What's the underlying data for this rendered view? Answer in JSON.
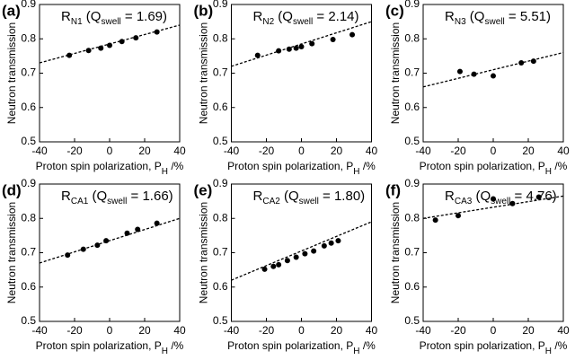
{
  "chart_data": [
    {
      "type": "scatter",
      "panel": "(a)",
      "title": [
        "R",
        "N1",
        " (Q",
        "swell",
        " = 1.69)"
      ],
      "xlabel": [
        "Proton spin polarization, P",
        "H",
        " /%"
      ],
      "ylabel": "Neutron transmission",
      "x": [
        -23,
        -12,
        -5,
        0,
        7,
        15,
        27
      ],
      "values": [
        0.752,
        0.766,
        0.773,
        0.781,
        0.792,
        0.803,
        0.82
      ],
      "fit": {
        "x": [
          -40,
          40
        ],
        "values": [
          0.73,
          0.84
        ]
      },
      "color": "#000000",
      "xlim": [
        -40,
        40
      ],
      "xticks": [
        -40,
        -20,
        0,
        20,
        40
      ],
      "ylim": [
        0.5,
        0.9
      ],
      "yticks": [
        0.5,
        0.6,
        0.7,
        0.8,
        0.9
      ]
    },
    {
      "type": "scatter",
      "panel": "(b)",
      "title": [
        "R",
        "N2",
        " (Q",
        "swell",
        " = 2.14)"
      ],
      "xlabel": [
        "Proton spin polarization, P",
        "H",
        " /%"
      ],
      "ylabel": "Neutron transmission",
      "x": [
        -25,
        -13,
        -7,
        -3,
        0,
        6,
        18,
        29
      ],
      "values": [
        0.752,
        0.765,
        0.77,
        0.773,
        0.777,
        0.786,
        0.798,
        0.812
      ],
      "fit": {
        "x": [
          -40,
          40
        ],
        "values": [
          0.72,
          0.85
        ]
      },
      "color": "#000000",
      "xlim": [
        -40,
        40
      ],
      "xticks": [
        -40,
        -20,
        0,
        20,
        40
      ],
      "ylim": [
        0.5,
        0.9
      ],
      "yticks": [
        0.5,
        0.6,
        0.7,
        0.8,
        0.9
      ]
    },
    {
      "type": "scatter",
      "panel": "(c)",
      "title": [
        "R",
        "N3",
        " (Q",
        "swell",
        " = 5.51)"
      ],
      "xlabel": [
        "Proton spin polarization, P",
        "H",
        " /%"
      ],
      "ylabel": "Neutron transmission",
      "x": [
        -19,
        -11,
        0,
        16,
        23
      ],
      "values": [
        0.705,
        0.697,
        0.692,
        0.73,
        0.735
      ],
      "fit": {
        "x": [
          -40,
          40
        ],
        "values": [
          0.66,
          0.76
        ]
      },
      "color": "#000000",
      "xlim": [
        -40,
        40
      ],
      "xticks": [
        -40,
        -20,
        0,
        20,
        40
      ],
      "ylim": [
        0.5,
        0.9
      ],
      "yticks": [
        0.5,
        0.6,
        0.7,
        0.8,
        0.9
      ]
    },
    {
      "type": "scatter",
      "panel": "(d)",
      "title": [
        "R",
        "CA1",
        " (Q",
        "swell",
        " = 1.66)"
      ],
      "xlabel": [
        "Proton spin polarization, P",
        "H",
        " /%"
      ],
      "ylabel": "Neutron transmission",
      "x": [
        -24,
        -15,
        -7,
        -2,
        10,
        16,
        27
      ],
      "values": [
        0.693,
        0.71,
        0.722,
        0.735,
        0.757,
        0.768,
        0.786
      ],
      "fit": {
        "x": [
          -40,
          40
        ],
        "values": [
          0.67,
          0.8
        ]
      },
      "color": "#000000",
      "xlim": [
        -40,
        40
      ],
      "xticks": [
        -40,
        -20,
        0,
        20,
        40
      ],
      "ylim": [
        0.5,
        0.9
      ],
      "yticks": [
        0.5,
        0.6,
        0.7,
        0.8,
        0.9
      ]
    },
    {
      "type": "scatter",
      "panel": "(e)",
      "title": [
        "R",
        "CA2",
        " (Q",
        "swell",
        " = 1.80)"
      ],
      "xlabel": [
        "Proton spin polarization, P",
        "H",
        " /%"
      ],
      "ylabel": "Neutron transmission",
      "x": [
        -21,
        -16,
        -13,
        -8,
        -3,
        2,
        7,
        13,
        17,
        21
      ],
      "values": [
        0.652,
        0.66,
        0.665,
        0.677,
        0.687,
        0.697,
        0.705,
        0.72,
        0.728,
        0.735
      ],
      "fit": {
        "x": [
          -40,
          40
        ],
        "values": [
          0.62,
          0.79
        ]
      },
      "color": "#000000",
      "xlim": [
        -40,
        40
      ],
      "xticks": [
        -40,
        -20,
        0,
        20,
        40
      ],
      "ylim": [
        0.5,
        0.9
      ],
      "yticks": [
        0.5,
        0.6,
        0.7,
        0.8,
        0.9
      ]
    },
    {
      "type": "scatter",
      "panel": "(f)",
      "title": [
        "R",
        "CA3",
        " (Q",
        "swell",
        " = 4.76)"
      ],
      "xlabel": [
        "Proton spin polarization, P",
        "H",
        " /%"
      ],
      "ylabel": "Neutron transmission",
      "x": [
        -33,
        -20,
        0,
        11,
        26
      ],
      "values": [
        0.795,
        0.808,
        0.857,
        0.843,
        0.862
      ],
      "fit": {
        "x": [
          -40,
          40
        ],
        "values": [
          0.8,
          0.865
        ]
      },
      "color": "#000000",
      "xlim": [
        -40,
        40
      ],
      "xticks": [
        -40,
        -20,
        0,
        20,
        40
      ],
      "ylim": [
        0.5,
        0.9
      ],
      "yticks": [
        0.5,
        0.6,
        0.7,
        0.8,
        0.9
      ]
    }
  ]
}
